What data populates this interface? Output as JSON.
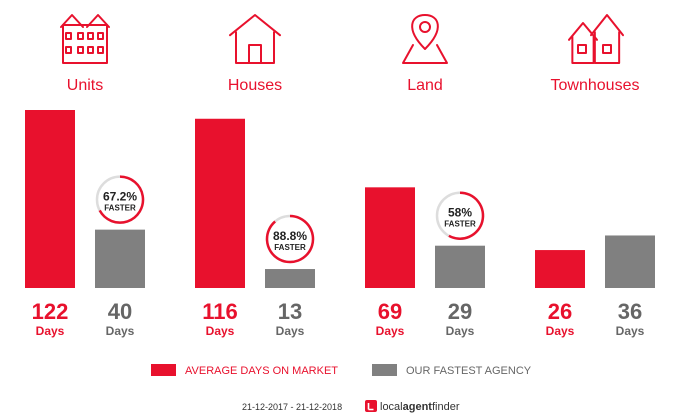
{
  "colors": {
    "market": "#e8112d",
    "agency": "#808080",
    "text_grey": "#666666"
  },
  "chart_data": {
    "type": "bar",
    "categories": [
      "Units",
      "Houses",
      "Land",
      "Townhouses"
    ],
    "icons": [
      "units-building-icon",
      "house-icon",
      "land-pin-icon",
      "townhouses-icon"
    ],
    "series": [
      {
        "name": "AVERAGE DAYS ON MARKET",
        "values": [
          122,
          116,
          69,
          26
        ]
      },
      {
        "name": "OUR FASTEST AGENCY",
        "values": [
          40,
          13,
          29,
          36
        ]
      }
    ],
    "value_unit": "Days",
    "badges": [
      {
        "pct": "67.2%",
        "label": "FASTER"
      },
      {
        "pct": "88.8%",
        "label": "FASTER"
      },
      {
        "pct": "58%",
        "label": "FASTER"
      },
      null
    ],
    "ylim": [
      0,
      122
    ],
    "grid": false,
    "legend_position": "bottom"
  },
  "legend": {
    "market_label": "AVERAGE DAYS ON MARKET",
    "agency_label": "OUR FASTEST AGENCY"
  },
  "footer": {
    "date_range": "21-12-2017 - 21-12-2018",
    "brand_part1": "local",
    "brand_part2": "agent",
    "brand_part3": "finder"
  }
}
